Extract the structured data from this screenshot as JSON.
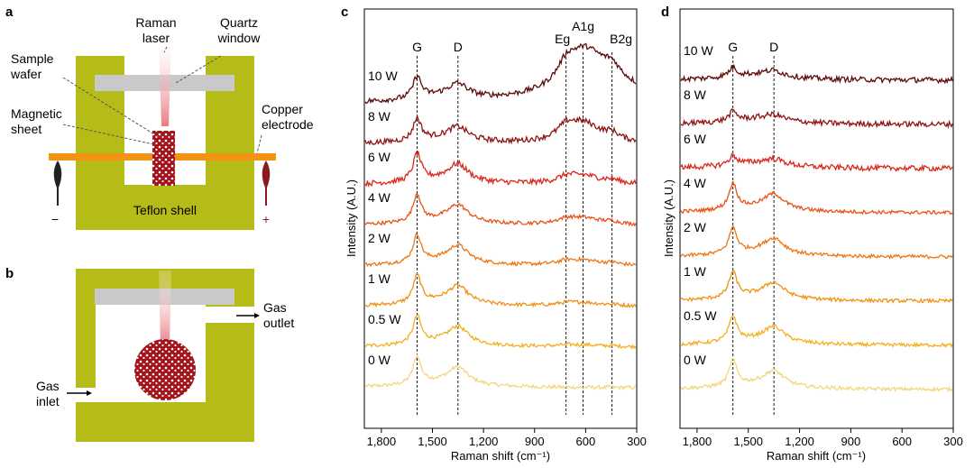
{
  "panels": {
    "a": {
      "label": "a",
      "raman_laser": [
        "Raman",
        "laser"
      ],
      "quartz_window": [
        "Quartz",
        "window"
      ],
      "sample_wafer": [
        "Sample",
        "wafer"
      ],
      "magnetic_sheet": [
        "Magnetic",
        "sheet"
      ],
      "copper_electrode": [
        "Copper",
        "electrode"
      ],
      "teflon_shell": "Teflon shell",
      "minus": "−",
      "plus": "+"
    },
    "b": {
      "label": "b",
      "gas_outlet": [
        "Gas",
        "outlet"
      ],
      "gas_inlet": [
        "Gas",
        "inlet"
      ]
    },
    "c": {
      "label": "c"
    },
    "d": {
      "label": "d"
    }
  },
  "chart_data": [
    {
      "id": "c",
      "type": "line",
      "title": "",
      "xlabel": "Raman shift (cm⁻¹)",
      "ylabel": "Intensity (A.U.)",
      "xlim": [
        1900,
        300
      ],
      "x_ticks": [
        1800,
        1500,
        1200,
        900,
        600,
        300
      ],
      "x_tick_labels": [
        "1,800",
        "1,500",
        "1,200",
        "900",
        "600",
        "300"
      ],
      "peaks": [
        {
          "name": "G",
          "x": 1590
        },
        {
          "name": "D",
          "x": 1350
        },
        {
          "name": "Eg",
          "x": 715
        },
        {
          "name": "A1g",
          "x": 615
        },
        {
          "name": "B2g",
          "x": 445
        }
      ],
      "series": [
        {
          "name": "0 W",
          "color": "#f3d77c",
          "offset": 0
        },
        {
          "name": "0.5 W",
          "color": "#f2b01c",
          "offset": 1
        },
        {
          "name": "1 W",
          "color": "#f19114",
          "offset": 2
        },
        {
          "name": "2 W",
          "color": "#ee7614",
          "offset": 3
        },
        {
          "name": "4 W",
          "color": "#ea5216",
          "offset": 4
        },
        {
          "name": "6 W",
          "color": "#dc261a",
          "offset": 5
        },
        {
          "name": "8 W",
          "color": "#8f1414",
          "offset": 6
        },
        {
          "name": "10 W",
          "color": "#5e0b0b",
          "offset": 7
        }
      ]
    },
    {
      "id": "d",
      "type": "line",
      "title": "",
      "xlabel": "Raman shift (cm⁻¹)",
      "ylabel": "Intensity (A.U.)",
      "xlim": [
        1900,
        300
      ],
      "x_ticks": [
        1800,
        1500,
        1200,
        900,
        600,
        300
      ],
      "x_tick_labels": [
        "1,800",
        "1,500",
        "1,200",
        "900",
        "600",
        "300"
      ],
      "peaks": [
        {
          "name": "G",
          "x": 1590
        },
        {
          "name": "D",
          "x": 1350
        }
      ],
      "series": [
        {
          "name": "0 W",
          "color": "#f3d77c",
          "offset": 0
        },
        {
          "name": "0.5 W",
          "color": "#f2b01c",
          "offset": 1
        },
        {
          "name": "1 W",
          "color": "#f19114",
          "offset": 2
        },
        {
          "name": "2 W",
          "color": "#ee7614",
          "offset": 3
        },
        {
          "name": "4 W",
          "color": "#ea5216",
          "offset": 4
        },
        {
          "name": "6 W",
          "color": "#dc261a",
          "offset": 5
        },
        {
          "name": "8 W",
          "color": "#8f1414",
          "offset": 6
        },
        {
          "name": "10 W",
          "color": "#5e0b0b",
          "offset": 7
        }
      ]
    }
  ]
}
